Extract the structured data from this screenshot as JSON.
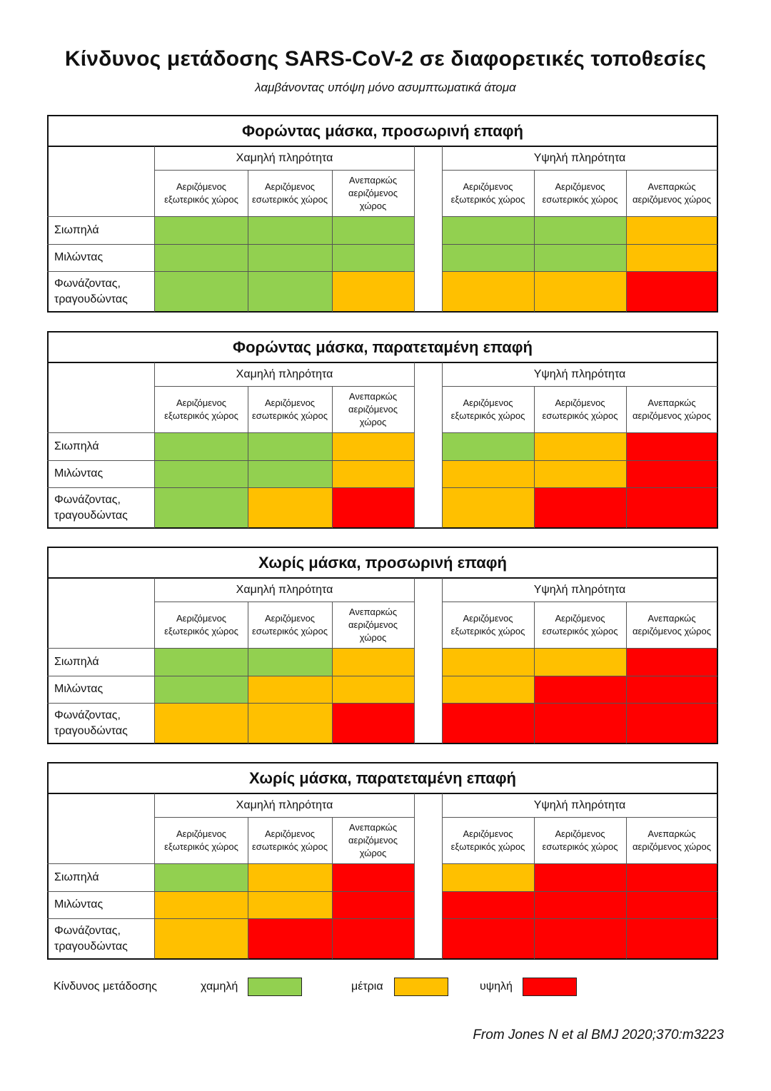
{
  "title": "Κίνδυνος μετάδοσης SARS-CoV-2 σε διαφορετικές τοποθεσίες",
  "subtitle": "λαμβάνοντας υπόψη μόνο ασυμπτωματικά άτομα",
  "colors": {
    "low": "#92d050",
    "medium": "#ffc000",
    "high": "#ff0000"
  },
  "chart_data": {
    "type": "heatmap",
    "groups": [
      "Χαμηλή πληρότητα",
      "Υψηλή πληρότητα"
    ],
    "columns": [
      "Αεριζόμενος εξωτερικός χώρος",
      "Αεριζόμενος εσωτερικός χώρος",
      "Ανεπαρκώς αεριζόμενος χώρος"
    ],
    "rows": [
      "Σιωπηλά",
      "Μιλώντας",
      "Φωνάζοντας, τραγουδώντας"
    ],
    "panels": [
      {
        "title": "Φορώντας μάσκα, προσωρινή επαφή",
        "values": [
          [
            "low",
            "low",
            "low",
            "low",
            "low",
            "medium"
          ],
          [
            "low",
            "low",
            "low",
            "low",
            "low",
            "medium"
          ],
          [
            "low",
            "low",
            "medium",
            "medium",
            "medium",
            "high"
          ]
        ]
      },
      {
        "title": "Φορώντας μάσκα, παρατεταμένη επαφή",
        "values": [
          [
            "low",
            "low",
            "medium",
            "low",
            "medium",
            "high"
          ],
          [
            "low",
            "low",
            "medium",
            "medium",
            "medium",
            "high"
          ],
          [
            "low",
            "medium",
            "high",
            "medium",
            "high",
            "high"
          ]
        ]
      },
      {
        "title": "Χωρίς μάσκα, προσωρινή επαφή",
        "values": [
          [
            "low",
            "low",
            "medium",
            "medium",
            "medium",
            "high"
          ],
          [
            "low",
            "medium",
            "medium",
            "medium",
            "high",
            "high"
          ],
          [
            "medium",
            "medium",
            "high",
            "high",
            "high",
            "high"
          ]
        ]
      },
      {
        "title": "Χωρίς μάσκα, παρατεταμένη επαφή",
        "values": [
          [
            "low",
            "medium",
            "high",
            "medium",
            "high",
            "high"
          ],
          [
            "medium",
            "medium",
            "high",
            "high",
            "high",
            "high"
          ],
          [
            "medium",
            "high",
            "high",
            "high",
            "high",
            "high"
          ]
        ]
      }
    ],
    "legend": {
      "title": "Κίνδυνος μετάδοσης",
      "entries": [
        {
          "key": "low",
          "label": "χαμηλή"
        },
        {
          "key": "medium",
          "label": "μέτρια"
        },
        {
          "key": "high",
          "label": "υψηλή"
        }
      ]
    }
  },
  "source": "From Jones N et al BMJ 2020;370:m3223"
}
